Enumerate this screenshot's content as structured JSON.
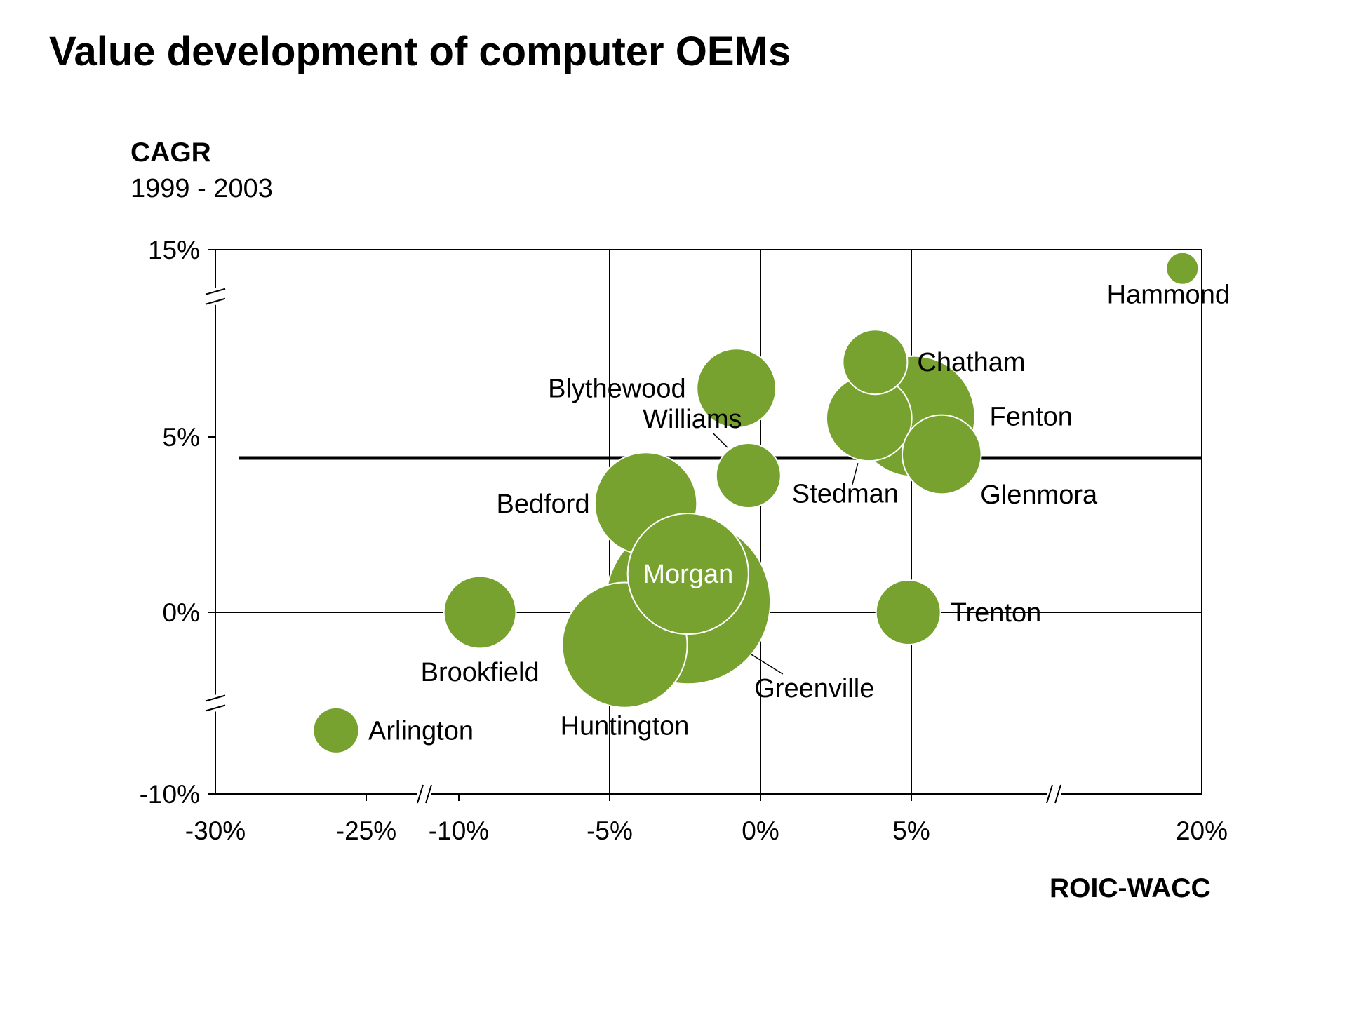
{
  "title": "Value development of computer OEMs",
  "y_axis": {
    "label": "CAGR",
    "sublabel": "1999 - 2003"
  },
  "x_axis": {
    "label": "ROIC-WACC"
  },
  "colors": {
    "bubble": "#78A22F",
    "bubble_stroke": "#ffffff",
    "axis": "#000000"
  },
  "chart_data": {
    "type": "scatter",
    "subtype": "bubble",
    "title": "Value development of computer OEMs",
    "xlabel": "ROIC-WACC",
    "ylabel": "CAGR 1999 - 2003",
    "x_ticks": [
      -30,
      -25,
      -10,
      -5,
      0,
      5,
      20
    ],
    "x_tick_labels": [
      "-30%",
      "-25%",
      "-10%",
      "-5%",
      "0%",
      "5%",
      "20%"
    ],
    "y_ticks": [
      15,
      5,
      0,
      -10
    ],
    "y_tick_labels": [
      "15%",
      "5%",
      "0%",
      "-10%"
    ],
    "x_axis_breaks": [
      [
        -25,
        -10
      ],
      [
        5,
        20
      ]
    ],
    "y_axis_breaks": [
      [
        5,
        15
      ],
      [
        -10,
        0
      ]
    ],
    "reference_line": {
      "axis": "y",
      "value": 4.4,
      "label": ""
    },
    "grid": true,
    "points": [
      {
        "name": "Hammond",
        "x": 19,
        "y": 14,
        "size": 1
      },
      {
        "name": "Chatham",
        "x": 3.8,
        "y": 9.0,
        "size": 4
      },
      {
        "name": "Blythewood",
        "x": -0.8,
        "y": 7.6,
        "size": 6
      },
      {
        "name": "Fenton",
        "x": 5.2,
        "y": 6.1,
        "size": 14
      },
      {
        "name": "Stedman",
        "x": 3.6,
        "y": 6.0,
        "size": 7
      },
      {
        "name": "Glenmora",
        "x": 6.6,
        "y": 4.5,
        "size": 6
      },
      {
        "name": "Williams",
        "x": -0.4,
        "y": 3.9,
        "size": 4
      },
      {
        "name": "Bedford",
        "x": -3.8,
        "y": 3.1,
        "size": 10
      },
      {
        "name": "Greenville",
        "x": -2.4,
        "y": 0.3,
        "size": 26
      },
      {
        "name": "Morgan",
        "x": -2.4,
        "y": 1.1,
        "size": 14
      },
      {
        "name": "Huntington",
        "x": -4.5,
        "y": -1.8,
        "size": 15
      },
      {
        "name": "Brookfield",
        "x": -9.3,
        "y": 0.0,
        "size": 5
      },
      {
        "name": "Trenton",
        "x": 4.9,
        "y": 0.0,
        "size": 4
      },
      {
        "name": "Arlington",
        "x": -26,
        "y": -6.5,
        "size": 2
      }
    ]
  }
}
